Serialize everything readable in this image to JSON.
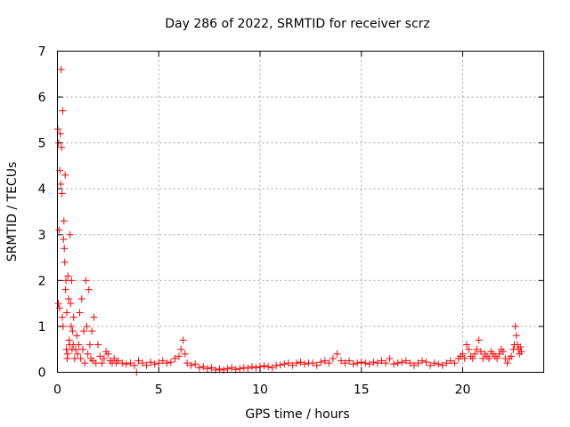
{
  "chart_data": {
    "type": "scatter",
    "title": "Day 286 of 2022, SRMTID for receiver scrz",
    "xlabel": "GPS time / hours",
    "ylabel": "SRMTID / TECUs",
    "xlim": [
      0,
      24
    ],
    "ylim": [
      0,
      7
    ],
    "xticks": [
      0,
      5,
      10,
      15,
      20
    ],
    "yticks": [
      0,
      1,
      2,
      3,
      4,
      5,
      6,
      7
    ],
    "grid": true,
    "marker": "plus",
    "color": "#ff0000",
    "series": [
      {
        "name": "SRMTID",
        "x": [
          0.02,
          0.04,
          0.06,
          0.08,
          0.1,
          0.12,
          0.14,
          0.16,
          0.18,
          0.2,
          0.22,
          0.24,
          0.26,
          0.28,
          0.3,
          0.32,
          0.34,
          0.36,
          0.38,
          0.4,
          0.42,
          0.44,
          0.46,
          0.48,
          0.5,
          0.52,
          0.55,
          0.58,
          0.6,
          0.62,
          0.65,
          0.68,
          0.7,
          0.72,
          0.75,
          0.78,
          0.8,
          0.85,
          0.9,
          0.95,
          1.0,
          1.05,
          1.1,
          1.15,
          1.2,
          1.25,
          1.3,
          1.35,
          1.4,
          1.45,
          1.5,
          1.55,
          1.6,
          1.65,
          1.7,
          1.75,
          1.8,
          1.9,
          2.0,
          2.1,
          2.2,
          2.3,
          2.4,
          2.5,
          2.6,
          2.7,
          2.8,
          2.9,
          3.0,
          3.2,
          3.4,
          3.6,
          3.8,
          3.9,
          4.0,
          4.2,
          4.4,
          4.6,
          4.8,
          5.0,
          5.2,
          5.4,
          5.6,
          5.8,
          6.0,
          6.1,
          6.2,
          6.3,
          6.4,
          6.6,
          6.8,
          7.0,
          7.2,
          7.4,
          7.6,
          7.8,
          8.0,
          8.2,
          8.4,
          8.6,
          8.8,
          9.0,
          9.2,
          9.4,
          9.6,
          9.8,
          10.0,
          10.2,
          10.4,
          10.6,
          10.8,
          11.0,
          11.2,
          11.4,
          11.6,
          11.8,
          12.0,
          12.2,
          12.4,
          12.6,
          12.8,
          13.0,
          13.2,
          13.4,
          13.6,
          13.8,
          14.0,
          14.2,
          14.4,
          14.6,
          14.8,
          15.0,
          15.2,
          15.4,
          15.6,
          15.8,
          16.0,
          16.2,
          16.4,
          16.6,
          16.8,
          17.0,
          17.2,
          17.4,
          17.6,
          17.8,
          18.0,
          18.2,
          18.4,
          18.6,
          18.8,
          19.0,
          19.2,
          19.4,
          19.6,
          19.8,
          19.9,
          20.0,
          20.1,
          20.2,
          20.3,
          20.4,
          20.5,
          20.6,
          20.7,
          20.8,
          20.9,
          21.0,
          21.1,
          21.2,
          21.3,
          21.4,
          21.5,
          21.6,
          21.7,
          21.8,
          21.9,
          22.0,
          22.1,
          22.2,
          22.3,
          22.4,
          22.5,
          22.55,
          22.6,
          22.65,
          22.7,
          22.75,
          22.8,
          22.85,
          22.9
        ],
        "y": [
          5.3,
          1.5,
          5.0,
          3.1,
          1.4,
          4.4,
          5.2,
          4.1,
          6.6,
          4.9,
          3.9,
          1.2,
          5.7,
          1.0,
          2.9,
          3.3,
          2.7,
          2.4,
          4.3,
          1.8,
          2.0,
          0.5,
          1.3,
          0.3,
          0.4,
          2.1,
          1.6,
          0.7,
          0.6,
          3.0,
          1.5,
          1.0,
          2.0,
          0.5,
          0.9,
          0.6,
          1.2,
          0.3,
          0.5,
          0.8,
          0.4,
          0.6,
          1.3,
          0.3,
          1.6,
          0.5,
          0.9,
          0.2,
          2.0,
          1.0,
          0.4,
          1.8,
          0.6,
          0.3,
          0.9,
          0.25,
          1.2,
          0.2,
          0.6,
          0.35,
          0.2,
          0.3,
          0.45,
          0.4,
          0.25,
          0.2,
          0.3,
          0.2,
          0.25,
          0.2,
          0.18,
          0.2,
          0.15,
          0.0,
          0.25,
          0.2,
          0.15,
          0.22,
          0.18,
          0.2,
          0.25,
          0.2,
          0.22,
          0.3,
          0.35,
          0.5,
          0.7,
          0.4,
          0.2,
          0.15,
          0.18,
          0.1,
          0.12,
          0.08,
          0.1,
          0.05,
          0.07,
          0.05,
          0.08,
          0.1,
          0.06,
          0.08,
          0.1,
          0.09,
          0.12,
          0.1,
          0.12,
          0.14,
          0.12,
          0.1,
          0.15,
          0.16,
          0.18,
          0.2,
          0.15,
          0.2,
          0.22,
          0.18,
          0.2,
          0.2,
          0.15,
          0.22,
          0.25,
          0.2,
          0.3,
          0.4,
          0.25,
          0.2,
          0.25,
          0.18,
          0.2,
          0.22,
          0.2,
          0.18,
          0.22,
          0.2,
          0.25,
          0.2,
          0.3,
          0.18,
          0.2,
          0.22,
          0.25,
          0.2,
          0.15,
          0.2,
          0.25,
          0.22,
          0.15,
          0.2,
          0.18,
          0.15,
          0.2,
          0.25,
          0.2,
          0.3,
          0.35,
          0.4,
          0.3,
          0.6,
          0.5,
          0.35,
          0.3,
          0.4,
          0.5,
          0.7,
          0.45,
          0.3,
          0.4,
          0.35,
          0.3,
          0.45,
          0.4,
          0.35,
          0.3,
          0.4,
          0.5,
          0.45,
          0.3,
          0.2,
          0.3,
          0.35,
          0.5,
          0.6,
          1.0,
          0.8,
          0.6,
          0.5,
          0.4,
          0.55,
          0.45
        ]
      }
    ]
  }
}
